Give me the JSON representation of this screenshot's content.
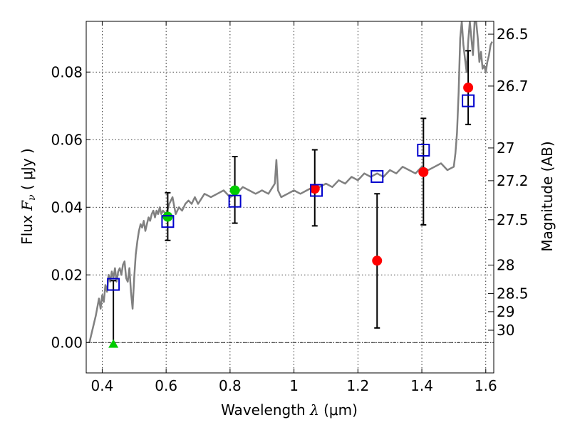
{
  "chart_data": {
    "type": "scatter",
    "xlabel": {
      "prefix": "Wavelength",
      "symbol": "λ",
      "unit": "(μm)"
    },
    "ylabel": {
      "prefix": "Flux",
      "symbol": "F",
      "subscript": "ν",
      "unit": "μJy"
    },
    "y2label": "Magnitude (AB)",
    "xlim": [
      0.35,
      1.625
    ],
    "ylim": [
      -0.009,
      0.095
    ],
    "grid": true,
    "x_ticks": [
      {
        "v": 0.4,
        "label": "0.4"
      },
      {
        "v": 0.6,
        "label": "0.6"
      },
      {
        "v": 0.8,
        "label": "0.8"
      },
      {
        "v": 1.0,
        "label": "1"
      },
      {
        "v": 1.2,
        "label": "1.2"
      },
      {
        "v": 1.4,
        "label": "1.4"
      },
      {
        "v": 1.6,
        "label": "1.6"
      }
    ],
    "y_ticks": [
      {
        "v": 0.0,
        "label": "0.00"
      },
      {
        "v": 0.02,
        "label": "0.02"
      },
      {
        "v": 0.04,
        "label": "0.04"
      },
      {
        "v": 0.06,
        "label": "0.06"
      },
      {
        "v": 0.08,
        "label": "0.08"
      }
    ],
    "y2_ticks": [
      {
        "mag": 26.5,
        "label": "26.5"
      },
      {
        "mag": 26.7,
        "label": "26.7"
      },
      {
        "mag": 27,
        "label": "27"
      },
      {
        "mag": 27.2,
        "label": "27.2"
      },
      {
        "mag": 27.5,
        "label": "27.5"
      },
      {
        "mag": 28,
        "label": "28"
      },
      {
        "mag": 28.5,
        "label": "28.5"
      },
      {
        "mag": 29,
        "label": "29"
      },
      {
        "mag": 30,
        "label": "30"
      }
    ],
    "series": [
      {
        "marker": "line",
        "color": "#808080",
        "x": [
          0.36,
          0.37,
          0.38,
          0.39,
          0.395,
          0.4,
          0.405,
          0.41,
          0.415,
          0.42,
          0.425,
          0.43,
          0.435,
          0.44,
          0.445,
          0.45,
          0.455,
          0.46,
          0.465,
          0.47,
          0.475,
          0.48,
          0.485,
          0.49,
          0.495,
          0.5,
          0.505,
          0.51,
          0.515,
          0.52,
          0.525,
          0.53,
          0.535,
          0.54,
          0.545,
          0.55,
          0.555,
          0.56,
          0.565,
          0.57,
          0.575,
          0.58,
          0.585,
          0.59,
          0.6,
          0.61,
          0.62,
          0.63,
          0.64,
          0.65,
          0.66,
          0.67,
          0.68,
          0.69,
          0.7,
          0.72,
          0.74,
          0.76,
          0.78,
          0.8,
          0.82,
          0.84,
          0.86,
          0.88,
          0.9,
          0.92,
          0.94,
          0.945,
          0.95,
          0.96,
          0.98,
          1.0,
          1.02,
          1.04,
          1.06,
          1.08,
          1.1,
          1.12,
          1.14,
          1.16,
          1.18,
          1.2,
          1.22,
          1.24,
          1.26,
          1.28,
          1.3,
          1.32,
          1.34,
          1.36,
          1.38,
          1.4,
          1.42,
          1.44,
          1.46,
          1.48,
          1.5,
          1.505,
          1.51,
          1.515,
          1.52,
          1.525,
          1.53,
          1.535,
          1.54,
          1.545,
          1.55,
          1.555,
          1.56,
          1.565,
          1.57,
          1.575,
          1.58,
          1.585,
          1.59,
          1.595,
          1.6,
          1.605,
          1.61,
          1.615,
          1.62
        ],
        "y": [
          0.0,
          0.004,
          0.008,
          0.013,
          0.01,
          0.014,
          0.012,
          0.017,
          0.015,
          0.02,
          0.018,
          0.021,
          0.019,
          0.022,
          0.018,
          0.021,
          0.022,
          0.02,
          0.023,
          0.024,
          0.019,
          0.018,
          0.022,
          0.015,
          0.01,
          0.019,
          0.026,
          0.03,
          0.033,
          0.035,
          0.034,
          0.036,
          0.033,
          0.035,
          0.037,
          0.036,
          0.038,
          0.039,
          0.037,
          0.039,
          0.038,
          0.04,
          0.038,
          0.039,
          0.038,
          0.041,
          0.043,
          0.038,
          0.04,
          0.039,
          0.041,
          0.042,
          0.041,
          0.043,
          0.041,
          0.044,
          0.043,
          0.044,
          0.045,
          0.043,
          0.044,
          0.046,
          0.045,
          0.044,
          0.045,
          0.044,
          0.047,
          0.054,
          0.045,
          0.043,
          0.044,
          0.045,
          0.044,
          0.045,
          0.046,
          0.046,
          0.047,
          0.046,
          0.048,
          0.047,
          0.049,
          0.048,
          0.05,
          0.049,
          0.05,
          0.049,
          0.051,
          0.05,
          0.052,
          0.051,
          0.05,
          0.052,
          0.051,
          0.052,
          0.053,
          0.051,
          0.052,
          0.056,
          0.062,
          0.074,
          0.09,
          0.095,
          0.088,
          0.084,
          0.08,
          0.089,
          0.095,
          0.09,
          0.085,
          0.095,
          0.095,
          0.09,
          0.083,
          0.086,
          0.081,
          0.082,
          0.08,
          0.083,
          0.085,
          0.088,
          0.089
        ]
      },
      {
        "marker": "circle",
        "color": "#ff0000",
        "x": [
          1.065,
          1.26,
          1.405,
          1.545
        ],
        "y": [
          0.0455,
          0.0242,
          0.0504,
          0.0754
        ],
        "yerr_lo": [
          0.0345,
          0.0043,
          0.0348,
          0.0645
        ],
        "yerr_hi": [
          0.057,
          0.044,
          0.0663,
          0.0863
        ]
      },
      {
        "marker": "circle",
        "color": "#00cc00",
        "x": [
          0.605,
          0.815
        ],
        "y": [
          0.0372,
          0.045
        ],
        "yerr_lo": [
          0.0302,
          0.0353
        ],
        "yerr_hi": [
          0.0443,
          0.055
        ]
      },
      {
        "marker": "triangle",
        "color": "#00cc00",
        "x": [
          0.435
        ],
        "y": [
          -0.0005
        ],
        "yerr_lo": [
          -0.0005
        ],
        "yerr_hi": [
          0.0183
        ]
      },
      {
        "marker": "square",
        "color": "#0000cc",
        "x": [
          0.435,
          0.605,
          0.815,
          1.07,
          1.26,
          1.405,
          1.545
        ],
        "y": [
          0.0172,
          0.0358,
          0.0418,
          0.045,
          0.0491,
          0.0569,
          0.0715
        ]
      }
    ]
  }
}
